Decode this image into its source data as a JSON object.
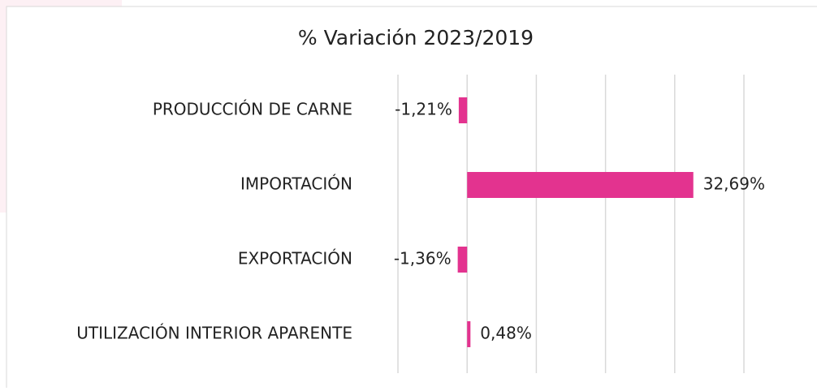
{
  "chart_data": {
    "type": "bar",
    "orientation": "horizontal",
    "title": "% Variación 2023/2019",
    "categories": [
      "PRODUCCIÓN DE CARNE",
      "IMPORTACIÓN",
      "EXPORTACIÓN",
      "UTILIZACIÓN INTERIOR APARENTE"
    ],
    "values": [
      -1.21,
      32.69,
      -1.36,
      0.48
    ],
    "value_labels": [
      "-1,21%",
      "32,69%",
      "-1,36%",
      "0,48%"
    ],
    "color": "#e3338f",
    "xlim": [
      -10,
      40
    ],
    "xticks": [
      -10,
      0,
      10,
      20,
      30,
      40
    ],
    "grid": true
  }
}
